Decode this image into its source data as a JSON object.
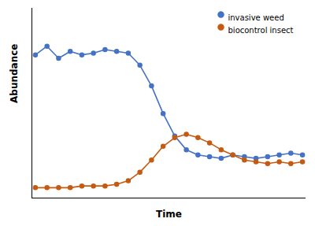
{
  "chart_data": {
    "type": "line",
    "xlabel": "Time",
    "ylabel": "Abundance",
    "x": [
      0,
      1,
      2,
      3,
      4,
      5,
      6,
      7,
      8,
      9,
      10,
      11,
      12,
      13,
      14,
      15,
      16,
      17,
      18,
      19,
      20,
      21,
      22,
      23
    ],
    "series": [
      {
        "name": "invasive weed",
        "color": "#4472C4",
        "marker": "circle",
        "values": [
          0.78,
          0.83,
          0.76,
          0.8,
          0.78,
          0.79,
          0.81,
          0.8,
          0.79,
          0.72,
          0.6,
          0.44,
          0.31,
          0.23,
          0.2,
          0.19,
          0.18,
          0.2,
          0.19,
          0.18,
          0.19,
          0.2,
          0.21,
          0.2
        ]
      },
      {
        "name": "biocontrol insect",
        "color": "#C55A11",
        "marker": "circle",
        "values": [
          0.01,
          0.01,
          0.01,
          0.01,
          0.02,
          0.02,
          0.02,
          0.03,
          0.05,
          0.1,
          0.17,
          0.25,
          0.3,
          0.32,
          0.3,
          0.27,
          0.23,
          0.2,
          0.17,
          0.16,
          0.15,
          0.16,
          0.15,
          0.16
        ]
      }
    ],
    "xlim": [
      -0.3,
      23.3
    ],
    "ylim": [
      -0.05,
      1.05
    ],
    "xticks": [],
    "yticks": [],
    "tick_labels": false,
    "grid": false,
    "legend": "upper right"
  }
}
